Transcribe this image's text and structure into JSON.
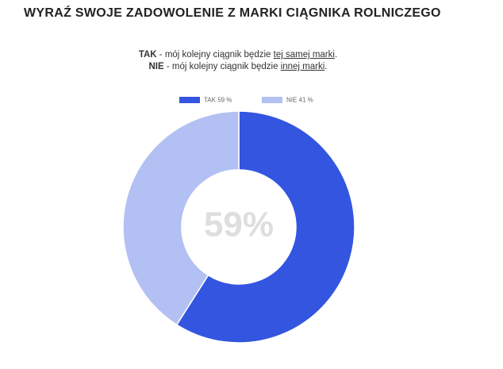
{
  "chart_data": {
    "type": "donut",
    "title": "WYRAŹ SWOJE ZADOWOLENIE Z MARKI CIĄGNIKA ROLNICZEGO",
    "subtitle_lines": [
      [
        {
          "text": "TAK",
          "style": "bold"
        },
        {
          "text": " - mój kolejny ciągnik będzie ",
          "style": "normal"
        },
        {
          "text": "tej samej marki",
          "style": "underline"
        },
        {
          "text": ".",
          "style": "normal"
        }
      ],
      [
        {
          "text": "NIE",
          "style": "bold"
        },
        {
          "text": " - mój kolejny ciągnik będzie ",
          "style": "normal"
        },
        {
          "text": "innej marki",
          "style": "underline"
        },
        {
          "text": ".",
          "style": "normal"
        }
      ]
    ],
    "categories": [
      "TAK",
      "NIE"
    ],
    "values": [
      59,
      41
    ],
    "legend_labels": [
      "TAK 59 %",
      "NIE 41 %"
    ],
    "colors": [
      "#3355e0",
      "#b3c0f3"
    ],
    "center_label": "59%",
    "legend_position": "top"
  }
}
